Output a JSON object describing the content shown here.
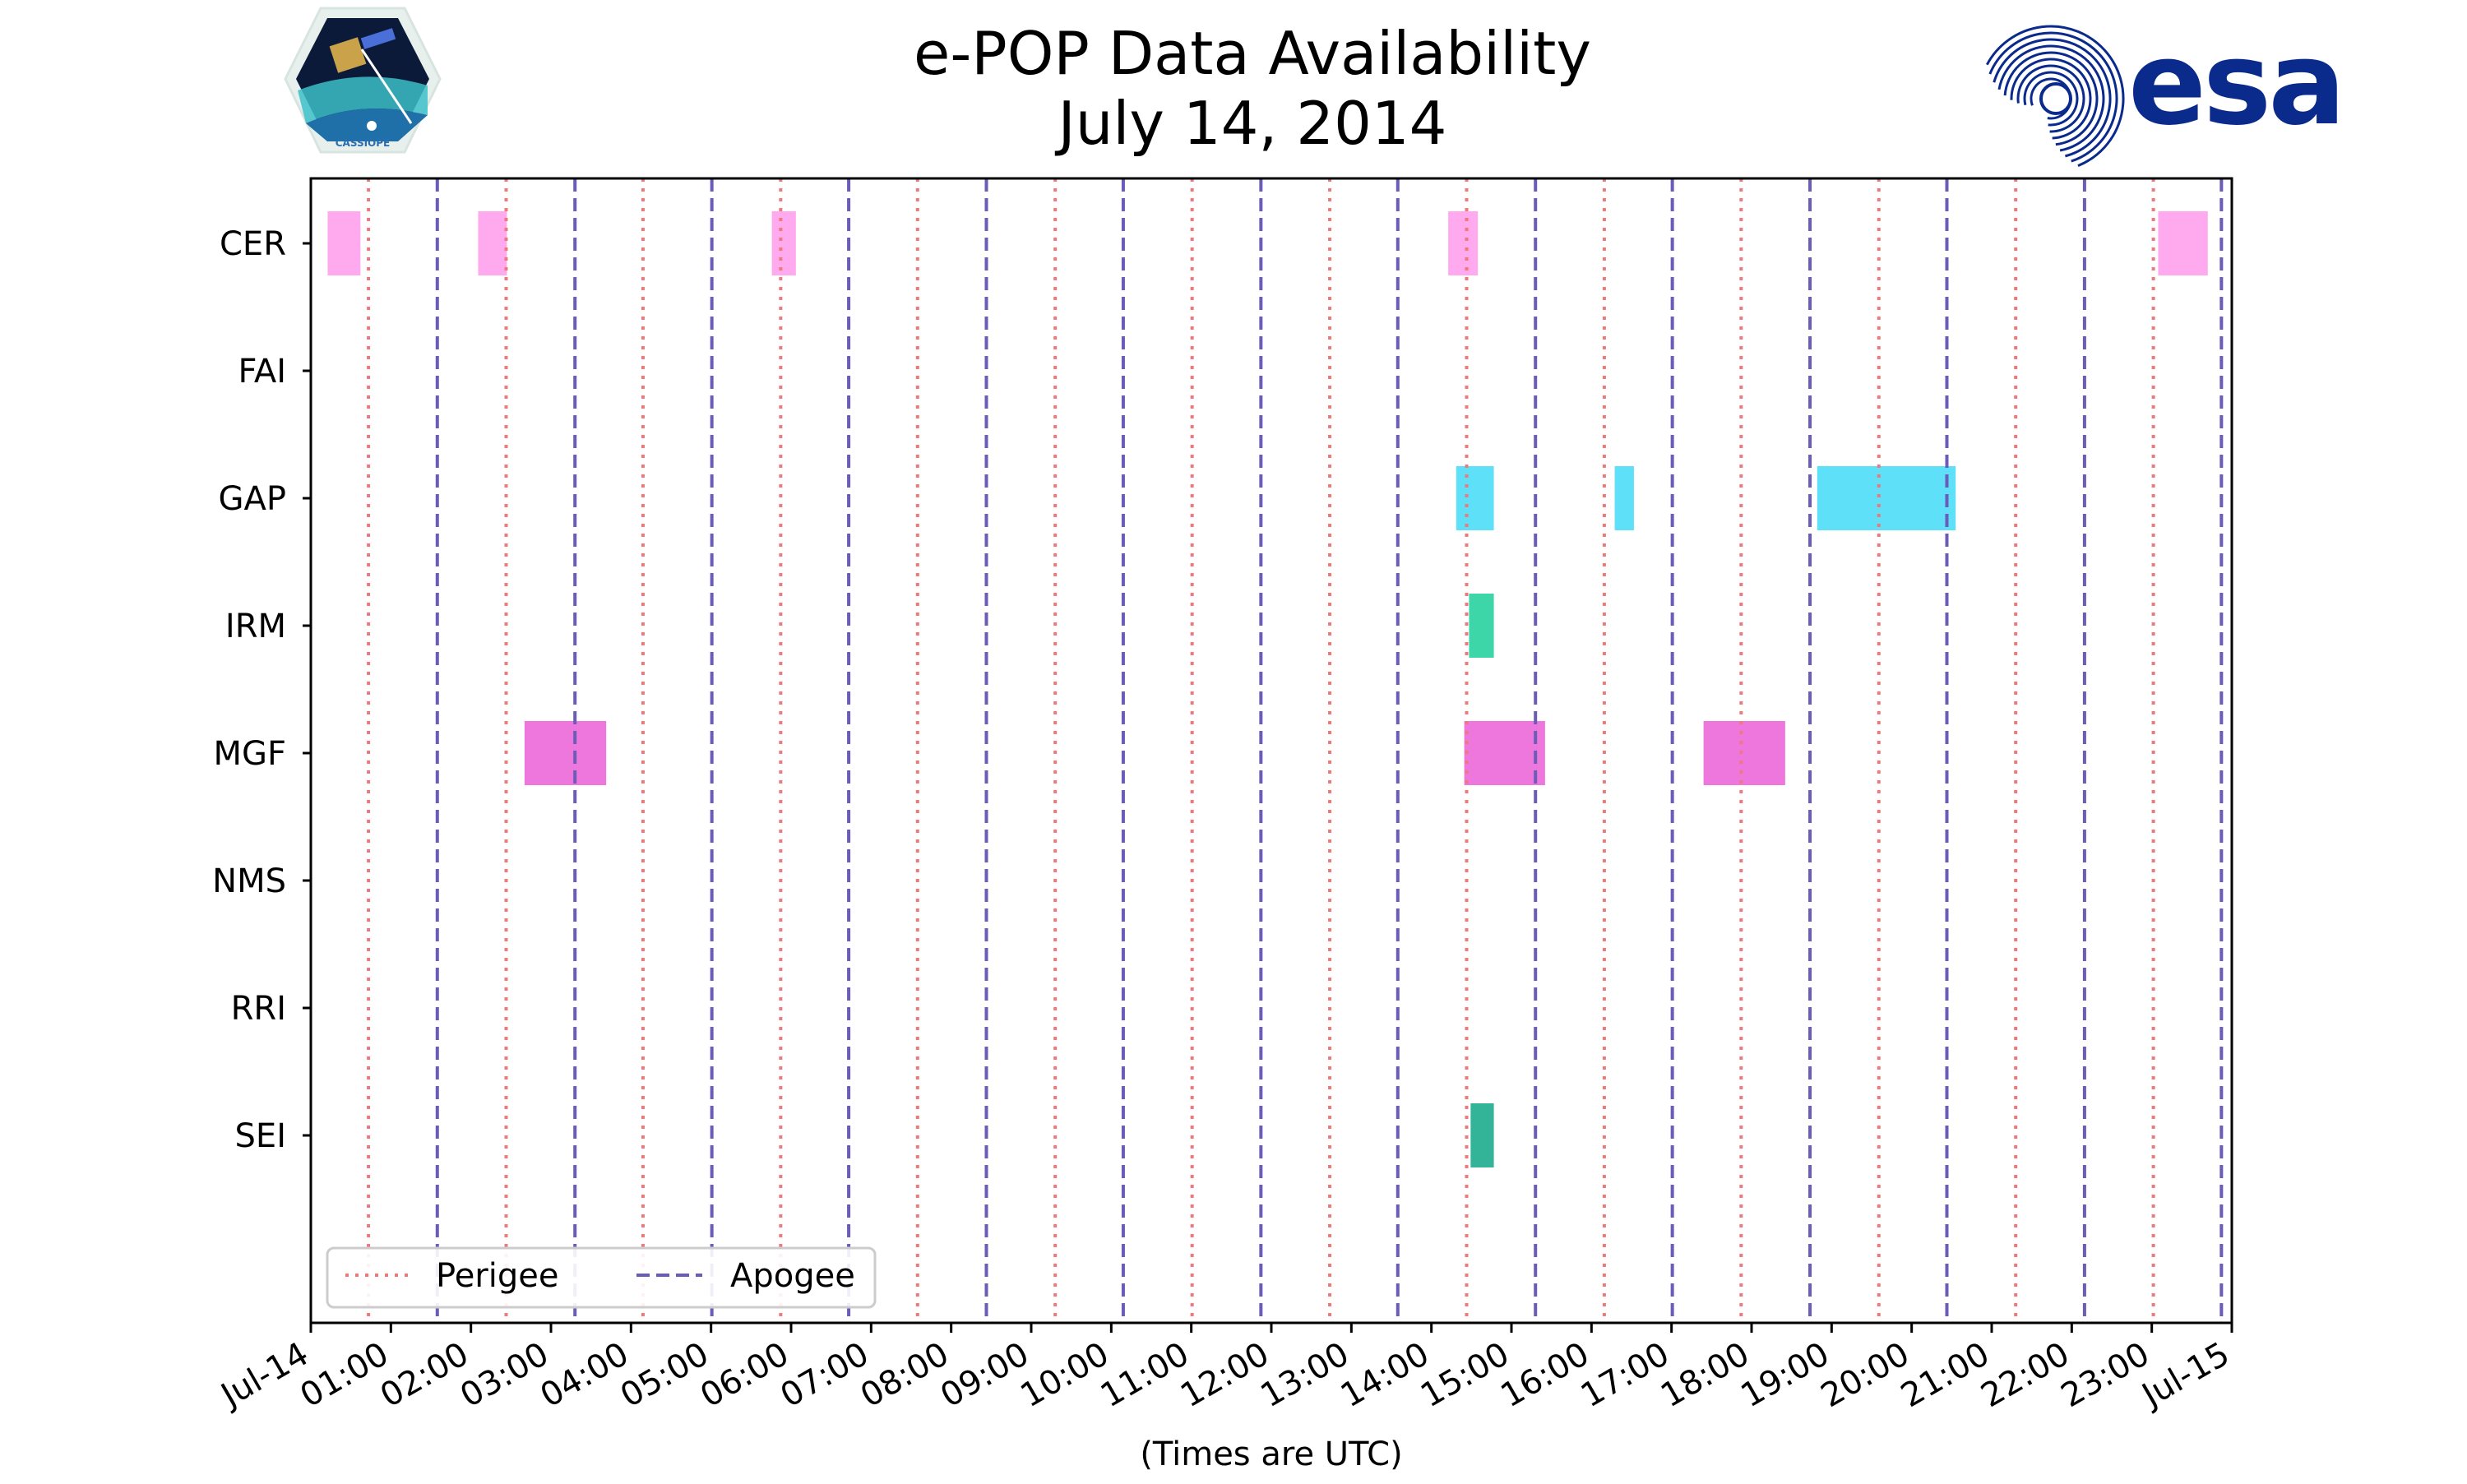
{
  "header": {
    "title_line1": "e-POP Data Availability",
    "title_line2": "July 14, 2014",
    "left_logo_text": "CASSIOPE",
    "right_logo_text": "esa"
  },
  "colors": {
    "perigee": "#f07878",
    "apogee": "#6a5cb8",
    "CER": "#ffaaee",
    "GAP": "#5ee0f8",
    "IRM": "#3dd6a8",
    "MGF": "#ee77dd",
    "SEI": "#33b499",
    "esa_blue": "#0a2a8c"
  },
  "chart_data": {
    "type": "timeline",
    "title": "e-POP Data Availability\nJuly 14, 2014",
    "xlabel": "(Times are UTC)",
    "ylabel": "",
    "xlim_hours": [
      0,
      24
    ],
    "x_tick_labels": [
      "Jul-14",
      "01:00",
      "02:00",
      "03:00",
      "04:00",
      "05:00",
      "06:00",
      "07:00",
      "08:00",
      "09:00",
      "10:00",
      "11:00",
      "12:00",
      "13:00",
      "14:00",
      "15:00",
      "16:00",
      "17:00",
      "18:00",
      "19:00",
      "20:00",
      "21:00",
      "22:00",
      "23:00",
      "Jul-15"
    ],
    "instruments": [
      "CER",
      "FAI",
      "GAP",
      "IRM",
      "MGF",
      "NMS",
      "RRI",
      "SEI"
    ],
    "perigee_hours": [
      0.72,
      2.44,
      4.15,
      5.87,
      7.58,
      9.3,
      11.01,
      12.73,
      14.44,
      16.16,
      17.87,
      19.59,
      21.3,
      23.02
    ],
    "apogee_hours": [
      1.58,
      3.3,
      5.01,
      6.72,
      8.44,
      10.15,
      11.87,
      13.58,
      15.3,
      17.01,
      18.73,
      20.44,
      22.16,
      23.87
    ],
    "intervals": [
      {
        "instrument": "CER",
        "start": 0.21,
        "end": 0.62
      },
      {
        "instrument": "CER",
        "start": 2.09,
        "end": 2.45
      },
      {
        "instrument": "CER",
        "start": 5.76,
        "end": 6.06
      },
      {
        "instrument": "CER",
        "start": 14.21,
        "end": 14.58
      },
      {
        "instrument": "CER",
        "start": 23.08,
        "end": 23.7
      },
      {
        "instrument": "GAP",
        "start": 14.31,
        "end": 14.78
      },
      {
        "instrument": "GAP",
        "start": 16.29,
        "end": 16.53
      },
      {
        "instrument": "GAP",
        "start": 18.82,
        "end": 20.55
      },
      {
        "instrument": "IRM",
        "start": 14.47,
        "end": 14.78
      },
      {
        "instrument": "MGF",
        "start": 2.67,
        "end": 3.69
      },
      {
        "instrument": "MGF",
        "start": 14.41,
        "end": 15.42
      },
      {
        "instrument": "MGF",
        "start": 17.4,
        "end": 18.42
      },
      {
        "instrument": "SEI",
        "start": 14.49,
        "end": 14.78
      }
    ],
    "legend": {
      "position": "lower-left",
      "entries": [
        {
          "label": "Perigee",
          "style": "dotted"
        },
        {
          "label": "Apogee",
          "style": "dashed"
        }
      ]
    }
  }
}
